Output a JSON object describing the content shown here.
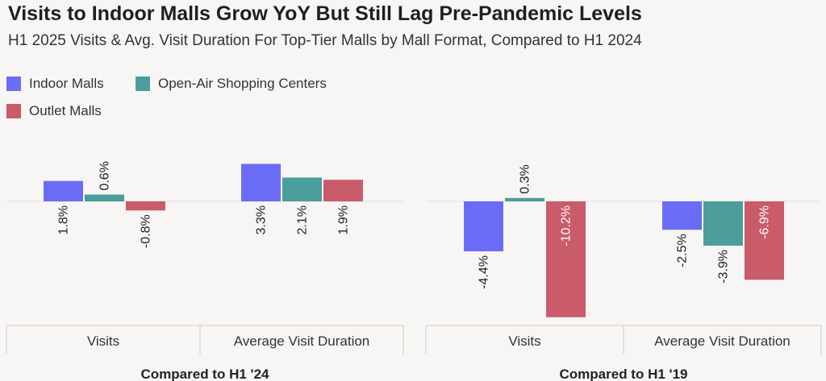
{
  "title": "Visits to Indoor Malls Grow YoY But Still Lag Pre-Pandemic Levels",
  "subtitle": "H1 2025 Visits & Avg. Visit Duration For Top-Tier Malls by Mall Format, Compared to H1 2024",
  "legend": [
    {
      "label": "Indoor Malls",
      "color": "#6b6cf6"
    },
    {
      "label": "Open-Air Shopping Centers",
      "color": "#4b9e9b"
    },
    {
      "label": "Outlet Malls",
      "color": "#c95b6b"
    }
  ],
  "chart_data": [
    {
      "type": "bar",
      "panel_label": "Compared to H1 '24",
      "categories": [
        "Visits",
        "Average Visit Duration"
      ],
      "series": [
        {
          "name": "Indoor Malls",
          "values": [
            1.8,
            3.3
          ]
        },
        {
          "name": "Open-Air Shopping Centers",
          "values": [
            0.6,
            2.1
          ]
        },
        {
          "name": "Outlet Malls",
          "values": [
            -0.8,
            1.9
          ]
        }
      ],
      "value_labels": [
        [
          "1.8%",
          "3.3%"
        ],
        [
          "0.6%",
          "2.1%"
        ],
        [
          "-0.8%",
          "1.9%"
        ]
      ],
      "ylim": [
        -10.5,
        3.6
      ]
    },
    {
      "type": "bar",
      "panel_label": "Compared to H1 '19",
      "categories": [
        "Visits",
        "Average Visit Duration"
      ],
      "series": [
        {
          "name": "Indoor Malls",
          "values": [
            -4.4,
            -2.5
          ]
        },
        {
          "name": "Open-Air Shopping Centers",
          "values": [
            0.3,
            -3.9
          ]
        },
        {
          "name": "Outlet Malls",
          "values": [
            -10.2,
            -6.9
          ]
        }
      ],
      "value_labels": [
        [
          "-4.4%",
          "-2.5%"
        ],
        [
          "0.3%",
          "-3.9%"
        ],
        [
          "-10.2%",
          "-6.9%"
        ]
      ],
      "ylim": [
        -10.5,
        3.6
      ]
    }
  ]
}
